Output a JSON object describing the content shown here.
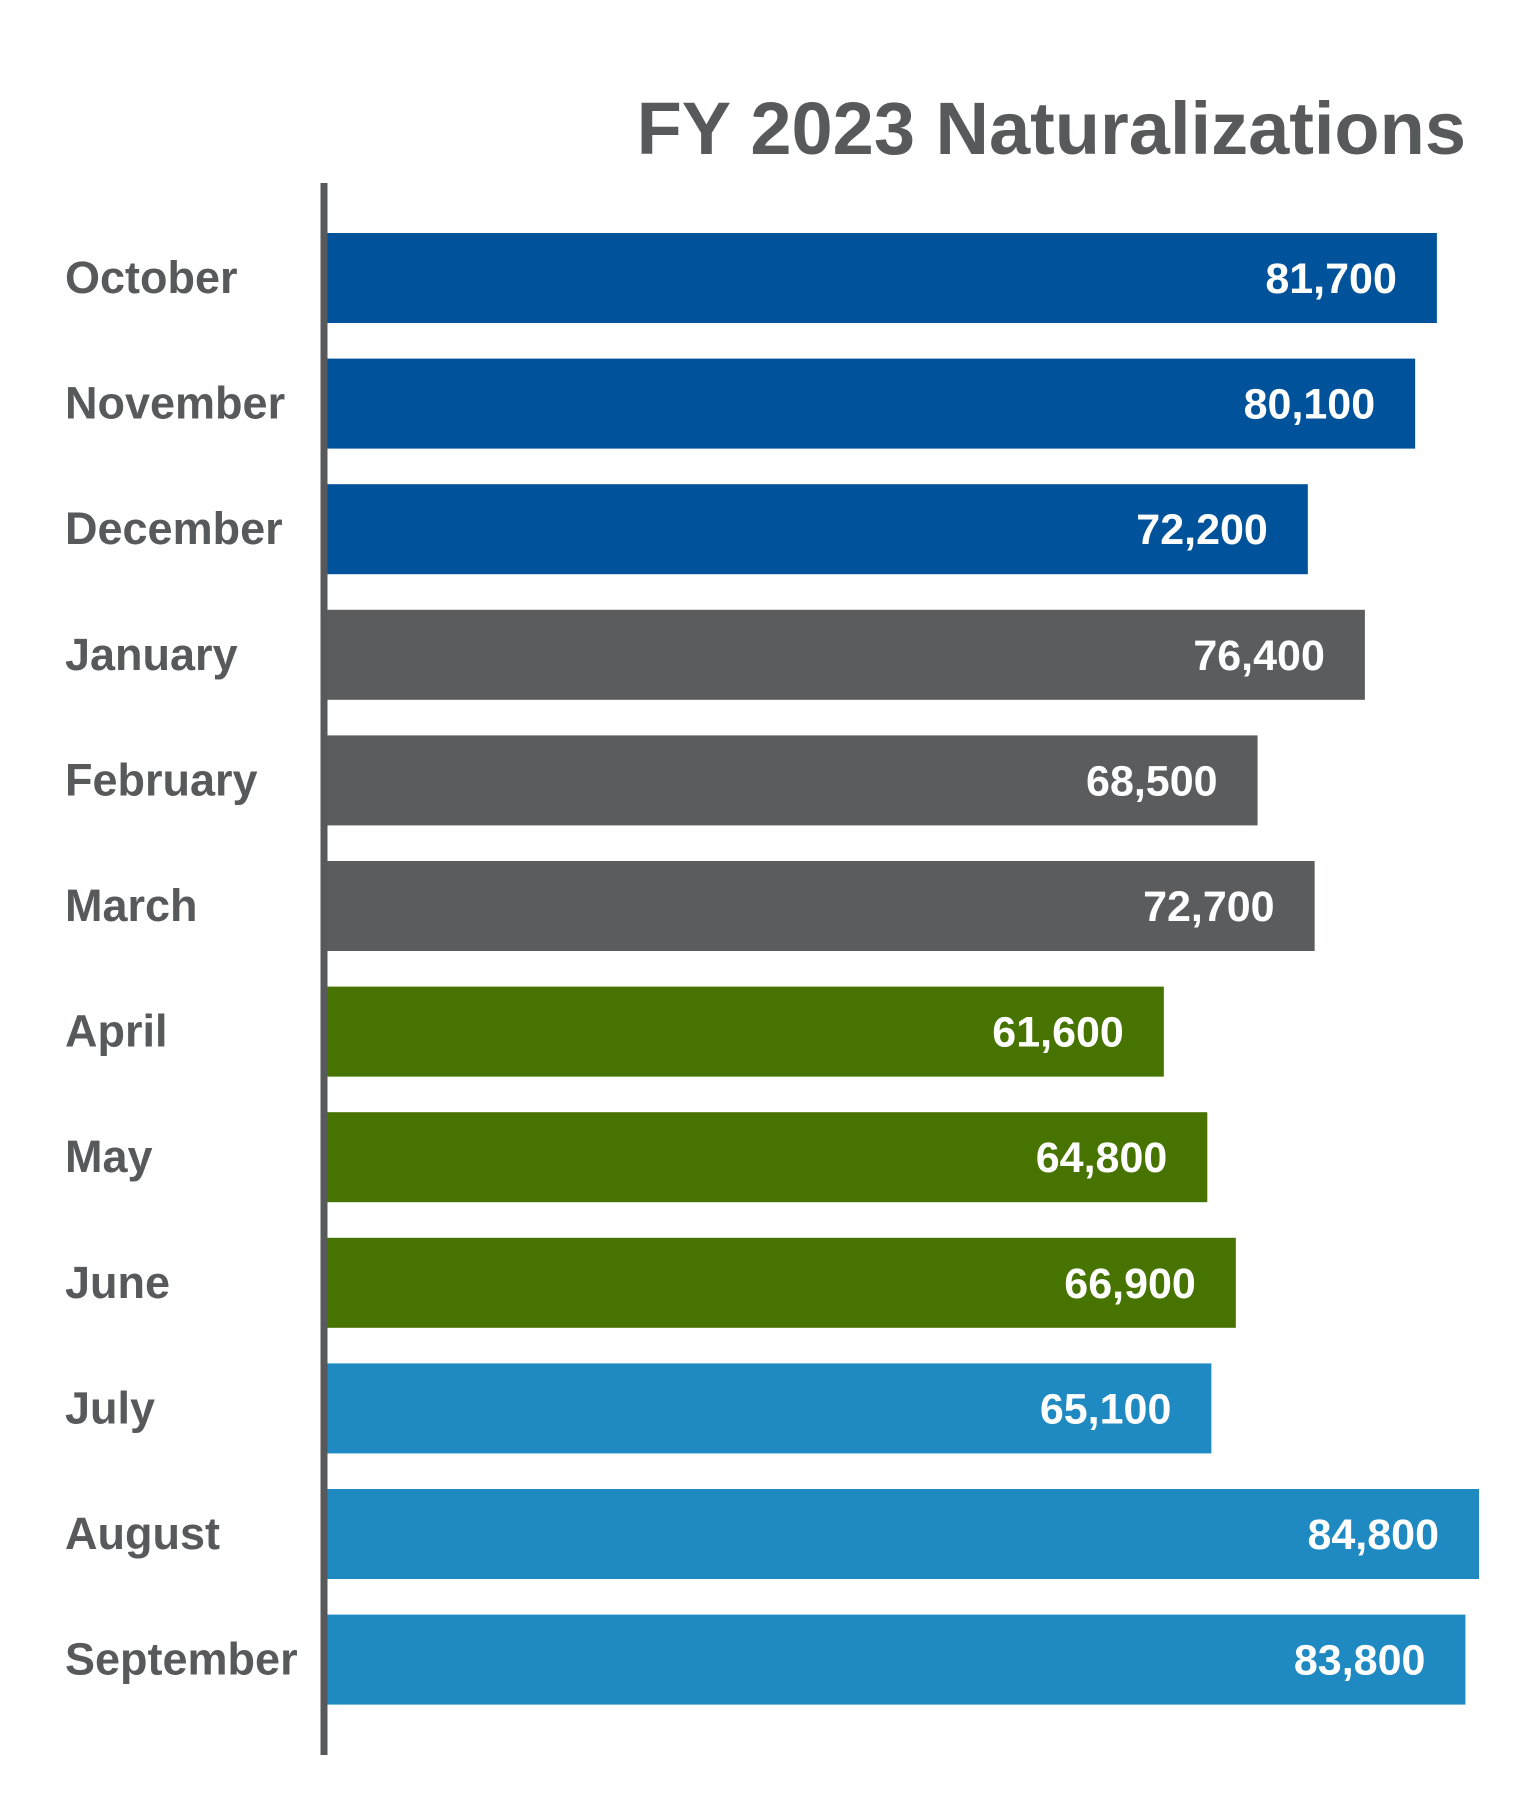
{
  "chart_data": {
    "type": "bar",
    "orientation": "horizontal",
    "title": "FY 2023 Naturalizations",
    "xlabel": "",
    "ylabel": "",
    "xlim": [
      0,
      84800
    ],
    "grid": false,
    "legend": "none",
    "categories": [
      "October",
      "November",
      "December",
      "January",
      "February",
      "March",
      "April",
      "May",
      "June",
      "July",
      "August",
      "September"
    ],
    "values": [
      81700,
      80100,
      72200,
      76400,
      68500,
      72700,
      61600,
      64800,
      66900,
      65100,
      84800,
      83800
    ],
    "value_labels": [
      "81,700",
      "80,100",
      "72,200",
      "76,400",
      "68,500",
      "72,700",
      "61,600",
      "64,800",
      "66,900",
      "65,100",
      "84,800",
      "83,800"
    ],
    "bar_colors": [
      "#00539b",
      "#00539b",
      "#00539b",
      "#5b5c5e",
      "#5b5c5e",
      "#5b5c5e",
      "#477300",
      "#477300",
      "#477300",
      "#1f89c2",
      "#1f89c2",
      "#1f89c2"
    ],
    "axis_color": "#58595b",
    "label_color": "#58595b",
    "value_label_color": "#ffffff"
  }
}
